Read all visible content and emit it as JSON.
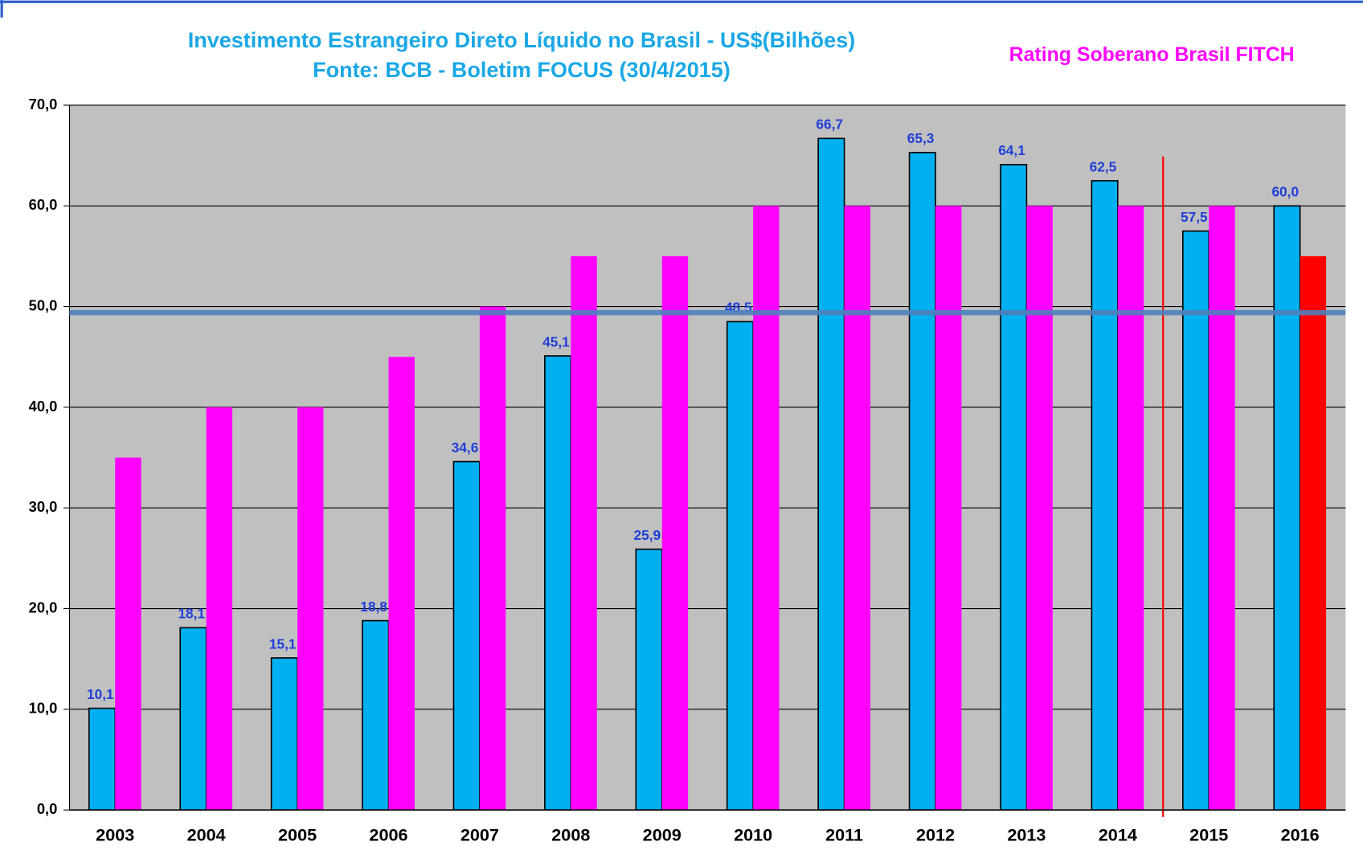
{
  "chart_data": {
    "type": "bar",
    "title": "Investimento Estrangeiro Direto Líquido no Brasil - US$(Bilhões)",
    "subtitle": "Fonte: BCB - Boletim FOCUS (30/4/2015)",
    "categories": [
      "2003",
      "2004",
      "2005",
      "2006",
      "2007",
      "2008",
      "2009",
      "2010",
      "2011",
      "2012",
      "2013",
      "2014",
      "2015",
      "2016"
    ],
    "series": [
      {
        "color": "#00b0f0",
        "values": [
          10.1,
          18.1,
          15.1,
          18.8,
          34.6,
          45.1,
          25.9,
          48.5,
          66.7,
          65.3,
          64.1,
          62.5,
          57.5,
          60.0
        ],
        "value_labels": [
          "10,1",
          "18,1",
          "15,1",
          "18,8",
          "34,6",
          "45,1",
          "25,9",
          "48,5",
          "66,7",
          "65,3",
          "64,1",
          "62,5",
          "57,5",
          "60,0"
        ]
      },
      {
        "name": "Rating Soberano Brasil FITCH",
        "color": "#ff00ff",
        "colors": [
          "#ff00ff",
          "#ff00ff",
          "#ff00ff",
          "#ff00ff",
          "#ff00ff",
          "#ff00ff",
          "#ff00ff",
          "#ff00ff",
          "#ff00ff",
          "#ff00ff",
          "#ff00ff",
          "#ff00ff",
          "#ff00ff",
          "#ff0000"
        ],
        "values": [
          35,
          40,
          40,
          45,
          50,
          55,
          55,
          60,
          60,
          60,
          60,
          60,
          60,
          55
        ]
      }
    ],
    "reference_line": {
      "value": 49.4,
      "color": "#4f81bd"
    },
    "ylim": [
      0,
      70
    ],
    "yticks": [
      {
        "value": 0,
        "label": "0,0"
      },
      {
        "value": 10,
        "label": "10,0"
      },
      {
        "value": 20,
        "label": "20,0"
      },
      {
        "value": 30,
        "label": "30,0"
      },
      {
        "value": 40,
        "label": "40,0"
      },
      {
        "value": 50,
        "label": "50,0"
      },
      {
        "value": 60,
        "label": "60,0"
      },
      {
        "value": 70,
        "label": "70,0"
      }
    ],
    "grid": true
  }
}
